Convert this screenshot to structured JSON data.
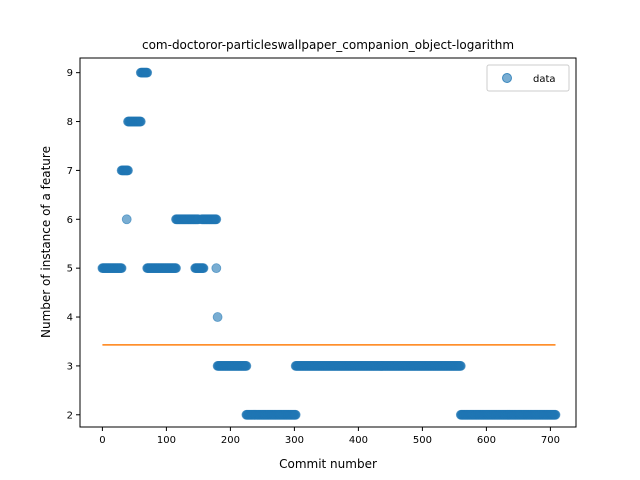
{
  "chart_data": {
    "type": "scatter",
    "title": "com-doctoror-particleswallpaper_companion_object-logarithm",
    "xlabel": "Commit number",
    "ylabel": "Number of instance of a feature",
    "xlim": [
      -35,
      740
    ],
    "ylim": [
      1.75,
      9.3
    ],
    "xticks": [
      0,
      100,
      200,
      300,
      400,
      500,
      600,
      700
    ],
    "yticks": [
      2,
      3,
      4,
      5,
      6,
      7,
      8,
      9
    ],
    "grid": false,
    "legend": {
      "position": "top-right",
      "entries": [
        "data"
      ]
    },
    "colors": {
      "points": "#1f77b4",
      "trend": "#ff7f0e"
    },
    "series": [
      {
        "name": "data",
        "kind": "scatter",
        "segments": [
          {
            "x_start": 0,
            "x_end": 30,
            "y": 5
          },
          {
            "x_start": 30,
            "x_end": 40,
            "y": 7
          },
          {
            "x_start": 38,
            "x_end": 38,
            "y": 6
          },
          {
            "x_start": 40,
            "x_end": 60,
            "y": 8
          },
          {
            "x_start": 60,
            "x_end": 70,
            "y": 9
          },
          {
            "x_start": 70,
            "x_end": 115,
            "y": 5
          },
          {
            "x_start": 115,
            "x_end": 150,
            "y": 6
          },
          {
            "x_start": 145,
            "x_end": 158,
            "y": 5
          },
          {
            "x_start": 155,
            "x_end": 178,
            "y": 6
          },
          {
            "x_start": 178,
            "x_end": 178,
            "y": 5
          },
          {
            "x_start": 180,
            "x_end": 180,
            "y": 4
          },
          {
            "x_start": 180,
            "x_end": 225,
            "y": 3
          },
          {
            "x_start": 225,
            "x_end": 302,
            "y": 2
          },
          {
            "x_start": 302,
            "x_end": 560,
            "y": 3
          },
          {
            "x_start": 560,
            "x_end": 708,
            "y": 2
          }
        ]
      },
      {
        "name": "",
        "kind": "line",
        "x": [
          0,
          708
        ],
        "y": [
          3.43,
          3.43
        ]
      }
    ]
  }
}
